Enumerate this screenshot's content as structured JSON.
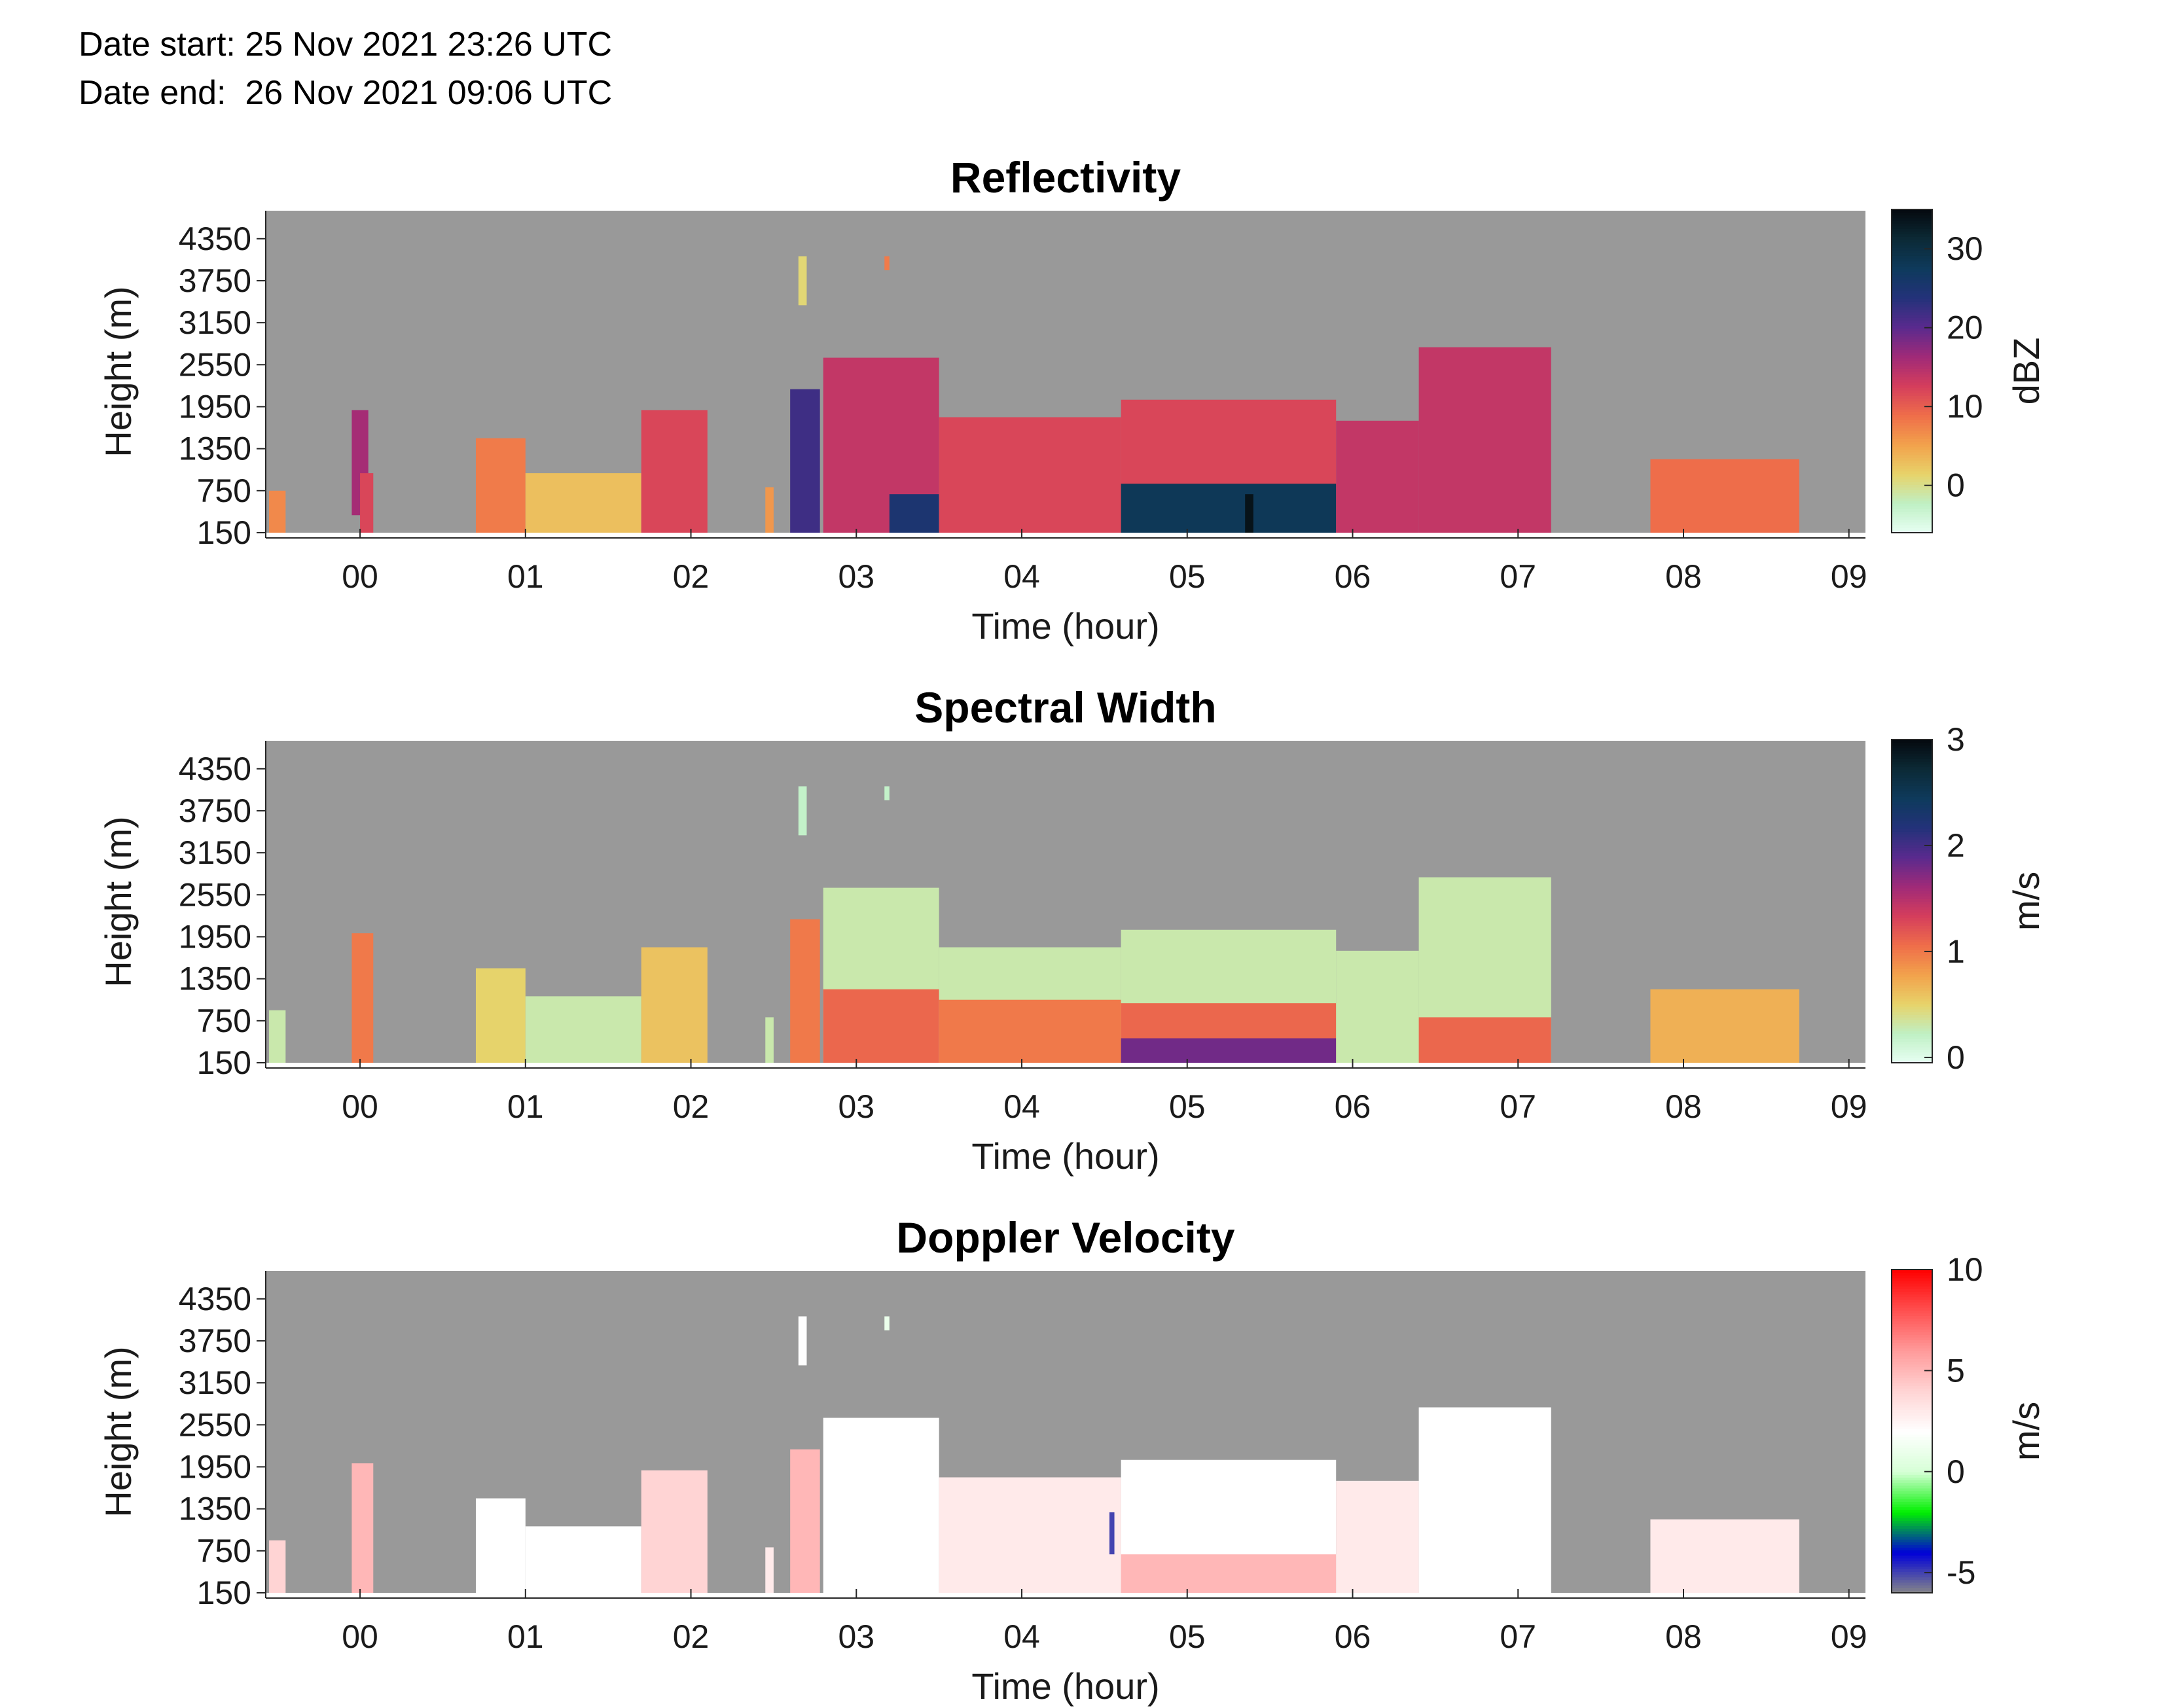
{
  "header": {
    "date_start": "Date start: 25 Nov 2021 23:26 UTC",
    "date_end": "Date end:  26 Nov 2021 09:06 UTC"
  },
  "colors": {
    "background_no_data": "#999999",
    "reflectivity_colormap": [
      "#e8fff4",
      "#bff0c4",
      "#e7d36a",
      "#f2a24c",
      "#ef6e4a",
      "#d53e5c",
      "#a02a78",
      "#5a2a8e",
      "#23327a",
      "#0e3a5c",
      "#0c2a36",
      "#050a0f"
    ],
    "spectral_width_colormap": [
      "#e8fff4",
      "#bff0c4",
      "#e7d36a",
      "#f2a24c",
      "#ef6e4a",
      "#d53e5c",
      "#a02a78",
      "#5a2a8e",
      "#23327a",
      "#0e3a5c",
      "#0c2a36",
      "#050a0f"
    ],
    "doppler_colormap": [
      "#878787",
      "#0000d8",
      "#00f000",
      "#d6ffd6",
      "#ffffff",
      "#ffd4d4",
      "#ff9a9a",
      "#ff5050",
      "#ff0000"
    ]
  },
  "chart_data": [
    {
      "type": "heatmap",
      "title": "Reflectivity",
      "xlabel": "Time (hour)",
      "ylabel": "Height (m)",
      "x_ticks": [
        "00",
        "01",
        "02",
        "03",
        "04",
        "05",
        "06",
        "07",
        "08",
        "09"
      ],
      "y_ticks": [
        "150",
        "750",
        "1350",
        "1950",
        "2550",
        "3150",
        "3750",
        "4350"
      ],
      "xlim_hours": [
        -0.57,
        9.1
      ],
      "ylim_m": [
        150,
        4750
      ],
      "colorbar": {
        "label": "dBZ",
        "ticks": [
          "0",
          "10",
          "20",
          "30"
        ],
        "range": [
          -6,
          35
        ]
      },
      "cells": [
        {
          "t0": -0.55,
          "t1": -0.45,
          "h0": 150,
          "h1": 750,
          "v": 7
        },
        {
          "t0": -0.05,
          "t1": 0.05,
          "h0": 400,
          "h1": 1900,
          "v": 16
        },
        {
          "t0": 0.0,
          "t1": 0.08,
          "h0": 150,
          "h1": 1000,
          "v": 12
        },
        {
          "t0": 0.7,
          "t1": 1.0,
          "h0": 150,
          "h1": 1500,
          "v": 8
        },
        {
          "t0": 1.0,
          "t1": 1.7,
          "h0": 150,
          "h1": 1000,
          "v": 3
        },
        {
          "t0": 1.7,
          "t1": 2.1,
          "h0": 150,
          "h1": 1900,
          "v": 12
        },
        {
          "t0": 2.45,
          "t1": 2.5,
          "h0": 150,
          "h1": 800,
          "v": 6
        },
        {
          "t0": 2.6,
          "t1": 2.78,
          "h0": 150,
          "h1": 2200,
          "v": 22
        },
        {
          "t0": 2.65,
          "t1": 2.7,
          "h0": 3400,
          "h1": 4100,
          "v": 1
        },
        {
          "t0": 3.17,
          "t1": 3.2,
          "h0": 3900,
          "h1": 4100,
          "v": 8
        },
        {
          "t0": 2.8,
          "t1": 3.5,
          "h0": 150,
          "h1": 2650,
          "v": 14
        },
        {
          "t0": 3.2,
          "t1": 3.5,
          "h0": 150,
          "h1": 700,
          "v": 25
        },
        {
          "t0": 3.5,
          "t1": 4.6,
          "h0": 150,
          "h1": 1800,
          "v": 12
        },
        {
          "t0": 4.6,
          "t1": 5.9,
          "h0": 150,
          "h1": 2050,
          "v": 12
        },
        {
          "t0": 4.6,
          "t1": 5.9,
          "h0": 150,
          "h1": 850,
          "v": 28
        },
        {
          "t0": 5.35,
          "t1": 5.4,
          "h0": 150,
          "h1": 700,
          "v": 34
        },
        {
          "t0": 5.9,
          "t1": 6.4,
          "h0": 150,
          "h1": 1750,
          "v": 14
        },
        {
          "t0": 6.4,
          "t1": 7.2,
          "h0": 150,
          "h1": 2800,
          "v": 14
        },
        {
          "t0": 7.8,
          "t1": 8.7,
          "h0": 150,
          "h1": 1200,
          "v": 9
        }
      ]
    },
    {
      "type": "heatmap",
      "title": "Spectral Width",
      "xlabel": "Time (hour)",
      "ylabel": "Height (m)",
      "x_ticks": [
        "00",
        "01",
        "02",
        "03",
        "04",
        "05",
        "06",
        "07",
        "08",
        "09"
      ],
      "y_ticks": [
        "150",
        "750",
        "1350",
        "1950",
        "2550",
        "3150",
        "3750",
        "4350"
      ],
      "xlim_hours": [
        -0.57,
        9.1
      ],
      "ylim_m": [
        150,
        4750
      ],
      "colorbar": {
        "label": "m/s",
        "ticks": [
          "0",
          "1",
          "2",
          "3"
        ],
        "range": [
          -0.05,
          3
        ]
      },
      "cells": [
        {
          "t0": -0.55,
          "t1": -0.45,
          "h0": 150,
          "h1": 900,
          "v": 0.3
        },
        {
          "t0": -0.05,
          "t1": 0.08,
          "h0": 150,
          "h1": 2000,
          "v": 1.0
        },
        {
          "t0": 0.7,
          "t1": 1.0,
          "h0": 150,
          "h1": 1500,
          "v": 0.5
        },
        {
          "t0": 1.0,
          "t1": 1.7,
          "h0": 150,
          "h1": 1100,
          "v": 0.3
        },
        {
          "t0": 1.7,
          "t1": 2.1,
          "h0": 150,
          "h1": 1800,
          "v": 0.6
        },
        {
          "t0": 2.45,
          "t1": 2.5,
          "h0": 150,
          "h1": 800,
          "v": 0.3
        },
        {
          "t0": 2.6,
          "t1": 2.78,
          "h0": 150,
          "h1": 2200,
          "v": 1.0
        },
        {
          "t0": 2.65,
          "t1": 2.7,
          "h0": 3400,
          "h1": 4100,
          "v": 0.2
        },
        {
          "t0": 3.17,
          "t1": 3.2,
          "h0": 3900,
          "h1": 4100,
          "v": 0.2
        },
        {
          "t0": 2.8,
          "t1": 3.5,
          "h0": 150,
          "h1": 2650,
          "v": 0.3
        },
        {
          "t0": 2.8,
          "t1": 3.5,
          "h0": 150,
          "h1": 1200,
          "v": 1.1
        },
        {
          "t0": 3.5,
          "t1": 4.6,
          "h0": 150,
          "h1": 1800,
          "v": 0.3
        },
        {
          "t0": 3.5,
          "t1": 4.6,
          "h0": 150,
          "h1": 1050,
          "v": 1.0
        },
        {
          "t0": 4.6,
          "t1": 5.9,
          "h0": 150,
          "h1": 2050,
          "v": 0.3
        },
        {
          "t0": 4.6,
          "t1": 5.9,
          "h0": 150,
          "h1": 1000,
          "v": 1.1
        },
        {
          "t0": 4.6,
          "t1": 5.9,
          "h0": 150,
          "h1": 500,
          "v": 1.8
        },
        {
          "t0": 5.9,
          "t1": 6.4,
          "h0": 150,
          "h1": 1750,
          "v": 0.3
        },
        {
          "t0": 6.4,
          "t1": 7.2,
          "h0": 150,
          "h1": 2800,
          "v": 0.3
        },
        {
          "t0": 6.4,
          "t1": 7.2,
          "h0": 150,
          "h1": 800,
          "v": 1.1
        },
        {
          "t0": 7.8,
          "t1": 8.7,
          "h0": 150,
          "h1": 1200,
          "v": 0.7
        }
      ]
    },
    {
      "type": "heatmap",
      "title": "Doppler Velocity",
      "xlabel": "Time (hour)",
      "ylabel": "Height (m)",
      "x_ticks": [
        "00",
        "01",
        "02",
        "03",
        "04",
        "05",
        "06",
        "07",
        "08",
        "09"
      ],
      "y_ticks": [
        "150",
        "750",
        "1350",
        "1950",
        "2550",
        "3150",
        "3750",
        "4350"
      ],
      "xlim_hours": [
        -0.57,
        9.1
      ],
      "ylim_m": [
        150,
        4750
      ],
      "colorbar": {
        "label": "m/s",
        "ticks": [
          "10",
          "5",
          "0",
          "-5"
        ],
        "range": [
          -6,
          10
        ]
      },
      "cells": [
        {
          "t0": -0.55,
          "t1": -0.45,
          "h0": 150,
          "h1": 900,
          "v": 4
        },
        {
          "t0": -0.05,
          "t1": 0.08,
          "h0": 150,
          "h1": 2000,
          "v": 5
        },
        {
          "t0": 0.7,
          "t1": 1.0,
          "h0": 150,
          "h1": 1500,
          "v": 2
        },
        {
          "t0": 1.0,
          "t1": 1.7,
          "h0": 150,
          "h1": 1100,
          "v": 2
        },
        {
          "t0": 1.7,
          "t1": 2.1,
          "h0": 150,
          "h1": 1900,
          "v": 4
        },
        {
          "t0": 2.45,
          "t1": 2.5,
          "h0": 150,
          "h1": 800,
          "v": 3
        },
        {
          "t0": 2.6,
          "t1": 2.78,
          "h0": 150,
          "h1": 2200,
          "v": 5
        },
        {
          "t0": 2.65,
          "t1": 2.7,
          "h0": 3400,
          "h1": 4100,
          "v": 2
        },
        {
          "t0": 3.17,
          "t1": 3.2,
          "h0": 3900,
          "h1": 4100,
          "v": 1
        },
        {
          "t0": 2.8,
          "t1": 3.5,
          "h0": 150,
          "h1": 2650,
          "v": 2
        },
        {
          "t0": 3.5,
          "t1": 4.6,
          "h0": 150,
          "h1": 1800,
          "v": 3
        },
        {
          "t0": 4.53,
          "t1": 4.56,
          "h0": 700,
          "h1": 1300,
          "v": -5
        },
        {
          "t0": 4.6,
          "t1": 5.9,
          "h0": 150,
          "h1": 2050,
          "v": 2
        },
        {
          "t0": 4.6,
          "t1": 5.9,
          "h0": 150,
          "h1": 700,
          "v": 5
        },
        {
          "t0": 5.9,
          "t1": 6.4,
          "h0": 150,
          "h1": 1750,
          "v": 3
        },
        {
          "t0": 6.4,
          "t1": 7.2,
          "h0": 150,
          "h1": 2800,
          "v": 2
        },
        {
          "t0": 7.8,
          "t1": 8.7,
          "h0": 150,
          "h1": 1200,
          "v": 3
        }
      ]
    }
  ]
}
